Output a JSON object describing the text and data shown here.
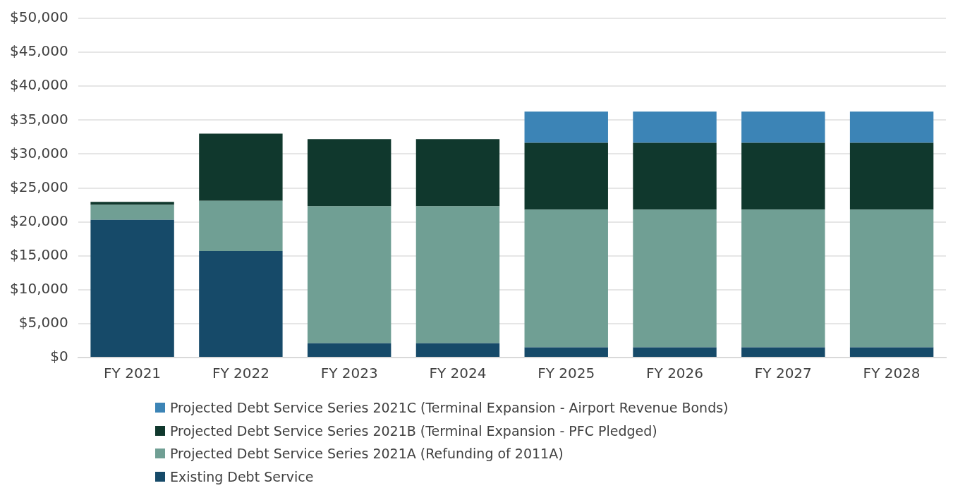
{
  "chart_data": {
    "type": "bar",
    "stacked": true,
    "categories": [
      "FY 2021",
      "FY 2022",
      "FY 2023",
      "FY 2024",
      "FY 2025",
      "FY 2026",
      "FY 2027",
      "FY 2028"
    ],
    "series": [
      {
        "name": "Existing Debt Service",
        "color": "#164a69",
        "values": [
          20300,
          15700,
          2100,
          2100,
          1500,
          1500,
          1500,
          1500
        ]
      },
      {
        "name": "Projected Debt Service Series 2021A (Refunding of 2011A)",
        "color": "#709f94",
        "values": [
          2200,
          7400,
          20200,
          20200,
          20300,
          20300,
          20300,
          20300
        ]
      },
      {
        "name": "Projected Debt Service Series 2021B (Terminal Expansion - PFC Pledged)",
        "color": "#10382d",
        "values": [
          450,
          9900,
          9900,
          9900,
          9850,
          9850,
          9850,
          9850
        ]
      },
      {
        "name": "Projected Debt Service Series 2021C (Terminal Expansion - Airport Revenue Bonds)",
        "color": "#3c84b6",
        "values": [
          null,
          null,
          null,
          null,
          4600,
          4600,
          4600,
          4600
        ]
      }
    ],
    "ylim": [
      0,
      50000
    ],
    "yticks": [
      {
        "value": 0,
        "label": "$0"
      },
      {
        "value": 5000,
        "label": "$5,000"
      },
      {
        "value": 10000,
        "label": "$10,000"
      },
      {
        "value": 15000,
        "label": "$15,000"
      },
      {
        "value": 20000,
        "label": "$20,000"
      },
      {
        "value": 25000,
        "label": "$25,000"
      },
      {
        "value": 30000,
        "label": "$30,000"
      },
      {
        "value": 35000,
        "label": "$35,000"
      },
      {
        "value": 40000,
        "label": "$40,000"
      },
      {
        "value": 45000,
        "label": "$45,000"
      },
      {
        "value": 50000,
        "label": "$50,000"
      }
    ],
    "grid": "y",
    "legend": "bottom"
  }
}
